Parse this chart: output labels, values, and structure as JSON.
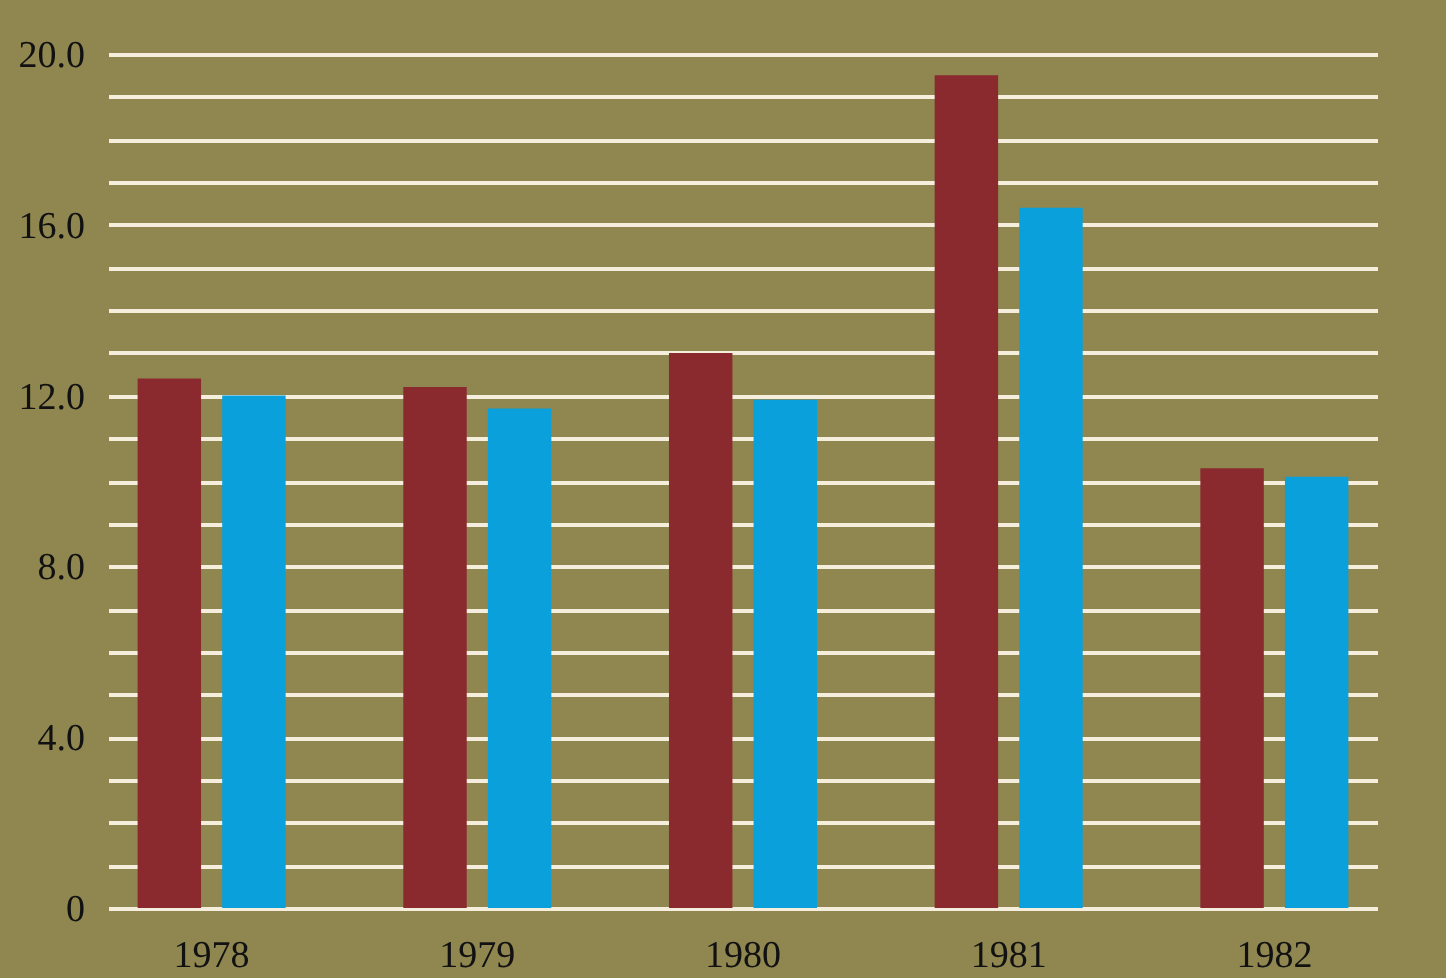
{
  "chart_data": {
    "type": "bar",
    "categories": [
      "1978",
      "1979",
      "1980",
      "1981",
      "1982"
    ],
    "series": [
      {
        "color": "#8b2a2e",
        "values": [
          12.4,
          12.2,
          13.0,
          19.5,
          10.3
        ]
      },
      {
        "color": "#0aa0dc",
        "values": [
          12.0,
          11.7,
          11.9,
          16.4,
          10.1
        ]
      }
    ],
    "ylim": [
      0,
      20
    ],
    "yticks": [
      0,
      {
        "value": 1,
        "label": null
      },
      {
        "value": 2,
        "label": null
      },
      {
        "value": 3,
        "label": null
      },
      {
        "value": 4,
        "label": "4.0"
      },
      {
        "value": 5,
        "label": null
      },
      {
        "value": 6,
        "label": null
      },
      {
        "value": 7,
        "label": null
      },
      {
        "value": 8,
        "label": "8.0"
      },
      {
        "value": 9,
        "label": null
      },
      {
        "value": 10,
        "label": null
      },
      {
        "value": 11,
        "label": null
      },
      {
        "value": 12,
        "label": "12.0"
      },
      {
        "value": 13,
        "label": null
      },
      {
        "value": 14,
        "label": null
      },
      {
        "value": 15,
        "label": null
      },
      {
        "value": 16,
        "label": "16.0"
      },
      {
        "value": 17,
        "label": null
      },
      {
        "value": 18,
        "label": null
      },
      {
        "value": 19,
        "label": null
      },
      {
        "value": 20,
        "label": "20.0"
      }
    ],
    "grid": true,
    "legend": false
  }
}
